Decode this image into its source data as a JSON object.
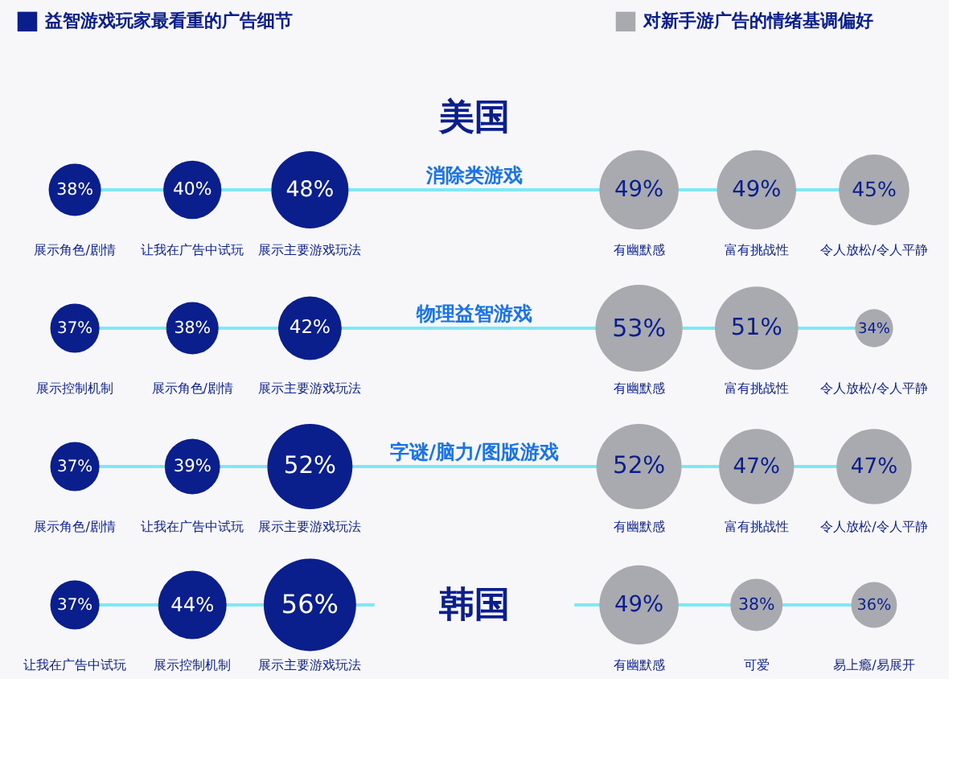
{
  "chart_data": [
    {
      "type": "other",
      "title": "消除类游戏",
      "annotations": [
        "美国"
      ],
      "legend": "top",
      "data_labels": true,
      "categories": [
        "展示角色/剧情",
        "让我在广告中试玩",
        "展示主要游戏玩法",
        "有幽默感",
        "富有挑战性",
        "令人放松/令人平静"
      ],
      "series": [
        {
          "name": "益智游戏玩家最看重的广告细节",
          "color": "#0a1e8c",
          "values": [
            38,
            40,
            48,
            null,
            null,
            null
          ],
          "value_labels": [
            "38%",
            "40%",
            "48%",
            null,
            null,
            null
          ]
        },
        {
          "name": "对新手游广告的情绪基调偏好",
          "color": "#a9aab0",
          "values": [
            null,
            null,
            null,
            49,
            49,
            45
          ],
          "value_labels": [
            null,
            null,
            null,
            "49%",
            "49%",
            "45%"
          ]
        }
      ]
    },
    {
      "type": "other",
      "title": "物理益智游戏",
      "data_labels": true,
      "categories": [
        "展示控制机制",
        "展示角色/剧情",
        "展示主要游戏玩法",
        "有幽默感",
        "富有挑战性",
        "令人放松/令人平静"
      ],
      "series": [
        {
          "color": "#0a1e8c",
          "values": [
            37,
            38,
            42,
            null,
            null,
            null
          ],
          "value_labels": [
            "37%",
            "38%",
            "42%",
            null,
            null,
            null
          ]
        },
        {
          "color": "#a9aab0",
          "values": [
            null,
            null,
            null,
            53,
            51,
            34
          ],
          "value_labels": [
            null,
            null,
            null,
            "53%",
            "51%",
            "34%"
          ]
        }
      ]
    },
    {
      "type": "other",
      "title": "字谜/脑力/图版游戏",
      "data_labels": true,
      "categories": [
        "展示角色/剧情",
        "让我在广告中试玩",
        "展示主要游戏玩法",
        "有幽默感",
        "富有挑战性",
        "令人放松/令人平静"
      ],
      "series": [
        {
          "color": "#0a1e8c",
          "values": [
            37,
            39,
            52,
            null,
            null,
            null
          ],
          "value_labels": [
            "37%",
            "39%",
            "52%",
            null,
            null,
            null
          ]
        },
        {
          "color": "#a9aab0",
          "values": [
            null,
            null,
            null,
            52,
            47,
            47
          ],
          "value_labels": [
            null,
            null,
            null,
            "52%",
            "47%",
            "47%"
          ]
        }
      ]
    },
    {
      "type": "other",
      "annotations": [
        "韩国"
      ],
      "data_labels": true,
      "categories": [
        "让我在广告中试玩",
        "展示控制机制",
        "展示主要游戏玩法",
        "有幽默感",
        "可爱",
        "易上瘾/易展开"
      ],
      "series": [
        {
          "color": "#0a1e8c",
          "values": [
            37,
            44,
            56,
            null,
            null,
            null
          ],
          "value_labels": [
            "37%",
            "44%",
            "56%",
            null,
            null,
            null
          ]
        },
        {
          "color": "#a9aab0",
          "values": [
            null,
            null,
            null,
            49,
            38,
            36
          ],
          "value_labels": [
            null,
            null,
            null,
            "49%",
            "38%",
            "36%"
          ]
        }
      ]
    }
  ]
}
